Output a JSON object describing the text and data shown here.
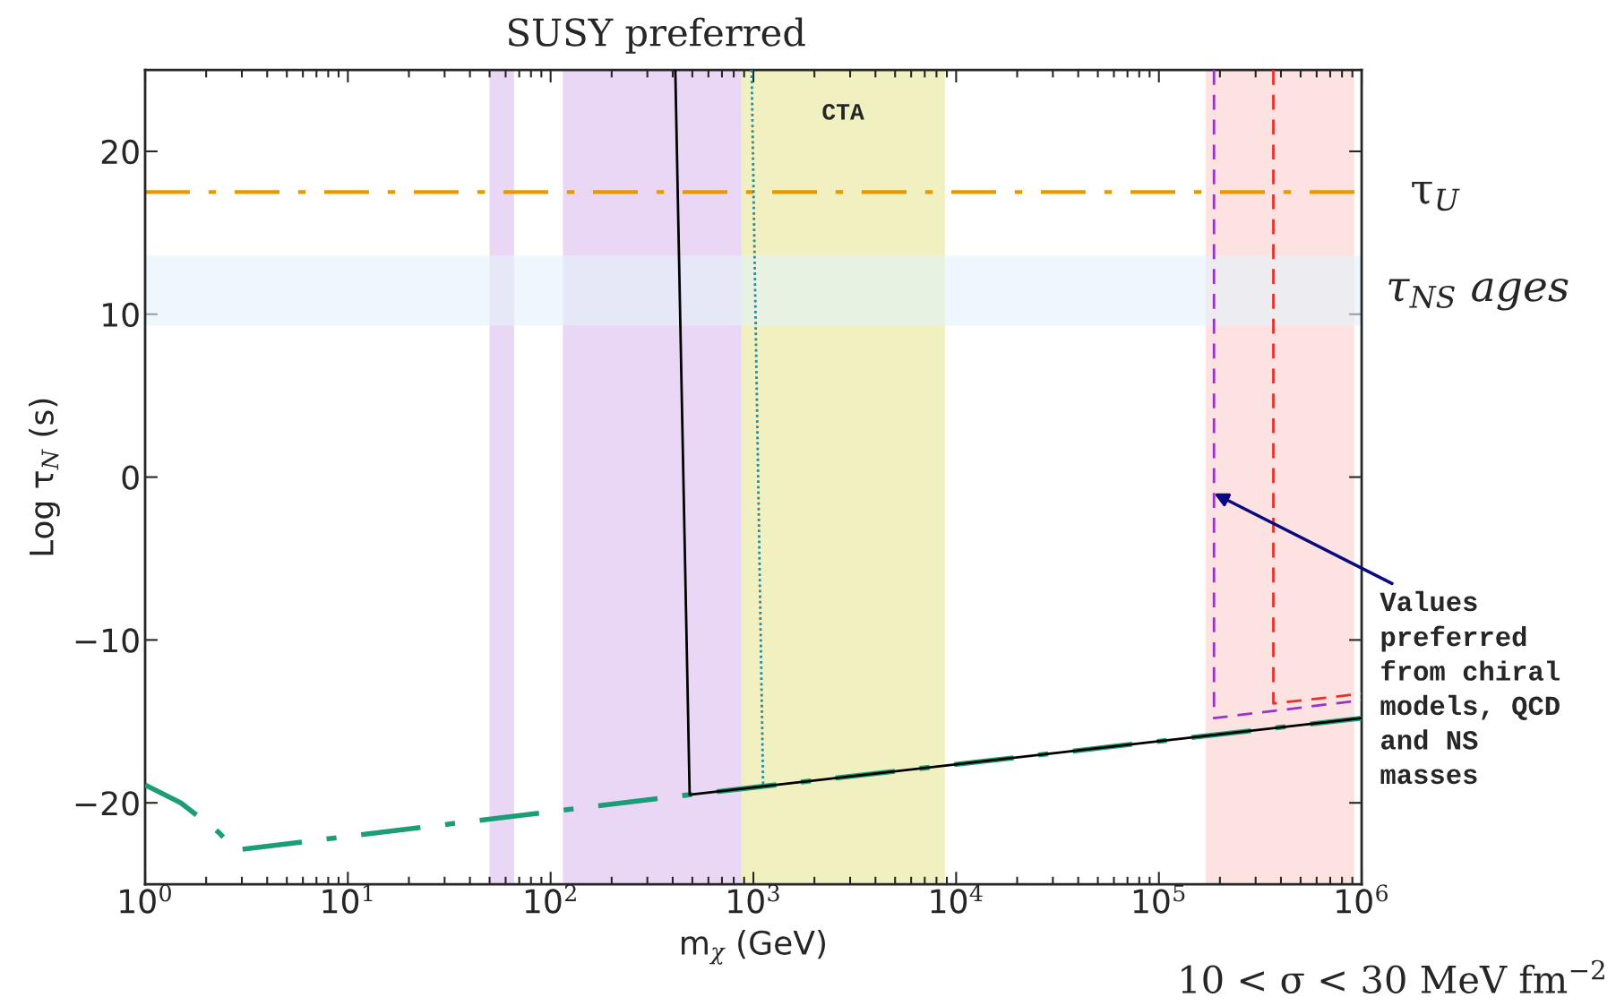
{
  "chart_data": {
    "type": "line",
    "xlabel": "m$_{χ}$ (GeV)",
    "ylabel": "Log τ$_{N}$ (s)",
    "log": "x",
    "grid": false,
    "legend": false,
    "xlim": [
      1,
      1000000
    ],
    "ylim": [
      -25,
      25
    ],
    "xticks": [
      {
        "value": 1,
        "label": "10$^{0}$"
      },
      {
        "value": 10,
        "label": "10$^{1}$"
      },
      {
        "value": 100,
        "label": "10$^{2}$"
      },
      {
        "value": 1000,
        "label": "10$^{3}$"
      },
      {
        "value": 10000,
        "label": "10$^{4}$"
      },
      {
        "value": 100000,
        "label": "10$^{5}$"
      },
      {
        "value": 1000000,
        "label": "10$^{6}$"
      }
    ],
    "yticks": [
      {
        "value": -20,
        "label": "−20"
      },
      {
        "value": -10,
        "label": "−10"
      },
      0,
      10,
      20
    ],
    "series": [
      {
        "color": "#1b9e77",
        "line_style": "dashdot",
        "x": [
          1,
          1.5,
          2.3,
          2.8,
          485,
          1000000
        ],
        "values": [
          -18.9,
          -20.0,
          -21.8,
          -22.9,
          -19.5,
          -14.8
        ]
      },
      {
        "color": "#000000",
        "line_style": "solid",
        "x": [
          412,
          485,
          1000000
        ],
        "values": [
          25,
          -19.5,
          -14.8
        ]
      },
      {
        "color": "#2a8a9a",
        "line_style": "dotted",
        "x": [
          980,
          1117
        ],
        "values": [
          25,
          -19.0
        ]
      },
      {
        "color": "#9933cc",
        "line_style": "dashed",
        "x": [
          187000,
          187000,
          1000000
        ],
        "values": [
          25,
          -14.8,
          -13.7
        ]
      },
      {
        "color": "#e8302a",
        "line_style": "dashed",
        "x": [
          367000,
          367000,
          1000000
        ],
        "values": [
          25,
          -13.9,
          -13.3
        ]
      }
    ],
    "bands": [
      {
        "axis": "y",
        "from": 9.3,
        "to": 13.6,
        "color": "#e2f3fa",
        "label": "τ$_{NS}$ ages"
      },
      {
        "axis": "x",
        "from": 50,
        "to": 66,
        "color": "#ead7f5"
      },
      {
        "axis": "x",
        "from": 115,
        "to": 950,
        "color": "#ead7f5",
        "label": "SUSY preferred"
      },
      {
        "axis": "x",
        "from": 870,
        "to": 8800,
        "color": "#f0f0c0",
        "label": "CTA"
      },
      {
        "axis": "x",
        "from": 170000,
        "to": 920000,
        "color": "#fde2e2"
      }
    ],
    "ref_lines": [
      {
        "axis": "y",
        "value": 17.5,
        "label": "τ$_{U}$",
        "color": "#e69a00",
        "line_style": "dashdot"
      }
    ],
    "annotations": [
      {
        "text": "Values\npreferred\nfrom chiral\nmodels, QCD\nand NS\nmasses",
        "x": 187000,
        "y": -1
      },
      "10 < σ < 30 MeV fm$^{−2}$"
    ]
  }
}
